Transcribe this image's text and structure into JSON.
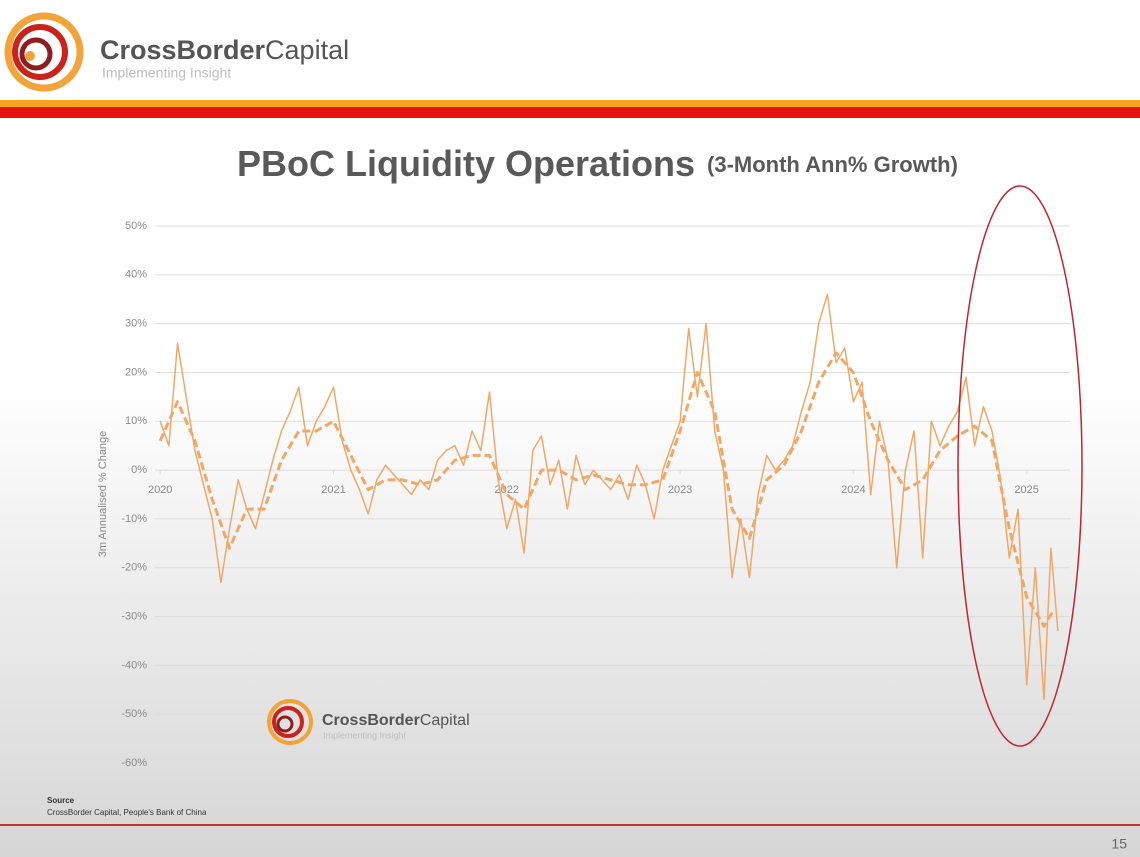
{
  "header": {
    "name_bold": "CrossBorder",
    "name_regular": "Capital",
    "tagline": "Implementing Insight"
  },
  "chart_data": {
    "type": "line",
    "title": "PBoC Liquidity Operations",
    "subtitle": "(3-Month Ann% Growth)",
    "y_label": "3m Annualised % Change",
    "xlim": [
      2019.97,
      2025.25
    ],
    "xticks": [
      2020,
      2021,
      2022,
      2023,
      2024,
      2025
    ],
    "ylim": [
      -60,
      50
    ],
    "yticks": [
      {
        "value": -60,
        "label": "-60%"
      },
      {
        "value": -50,
        "label": "-50%"
      },
      {
        "value": -40,
        "label": "-40%"
      },
      {
        "value": -30,
        "label": "-30%"
      },
      {
        "value": -20,
        "label": "-20%"
      },
      {
        "value": -10,
        "label": "-10%"
      },
      {
        "value": 0,
        "label": "0%"
      },
      {
        "value": 10,
        "label": "10%"
      },
      {
        "value": 20,
        "label": "20%"
      },
      {
        "value": 30,
        "label": "30%"
      },
      {
        "value": 40,
        "label": "40%"
      },
      {
        "value": 50,
        "label": "50%"
      }
    ],
    "grid": true,
    "series": [
      {
        "color": "#f0a868",
        "line_style": "solid",
        "x": [
          2020.0,
          2020.05,
          2020.1,
          2020.15,
          2020.2,
          2020.25,
          2020.3,
          2020.35,
          2020.4,
          2020.45,
          2020.5,
          2020.55,
          2020.6,
          2020.65,
          2020.7,
          2020.75,
          2020.8,
          2020.85,
          2020.9,
          2020.95,
          2021.0,
          2021.05,
          2021.1,
          2021.15,
          2021.2,
          2021.25,
          2021.3,
          2021.35,
          2021.4,
          2021.45,
          2021.5,
          2021.55,
          2021.6,
          2021.65,
          2021.7,
          2021.75,
          2021.8,
          2021.85,
          2021.9,
          2021.95,
          2022.0,
          2022.05,
          2022.1,
          2022.15,
          2022.2,
          2022.25,
          2022.3,
          2022.35,
          2022.4,
          2022.45,
          2022.5,
          2022.55,
          2022.6,
          2022.65,
          2022.7,
          2022.75,
          2022.8,
          2022.85,
          2022.9,
          2022.95,
          2023.0,
          2023.05,
          2023.1,
          2023.15,
          2023.2,
          2023.25,
          2023.3,
          2023.35,
          2023.4,
          2023.45,
          2023.5,
          2023.55,
          2023.6,
          2023.65,
          2023.7,
          2023.75,
          2023.8,
          2023.85,
          2023.9,
          2023.95,
          2024.0,
          2024.05,
          2024.1,
          2024.15,
          2024.2,
          2024.25,
          2024.3,
          2024.35,
          2024.4,
          2024.45,
          2024.5,
          2024.55,
          2024.6,
          2024.65,
          2024.7,
          2024.75,
          2024.8,
          2024.85,
          2024.9,
          2024.95,
          2025.0,
          2025.05,
          2025.1,
          2025.14,
          2025.18
        ],
        "values": [
          10,
          5,
          26,
          15,
          4,
          -3,
          -10,
          -23,
          -12,
          -2,
          -8,
          -12,
          -5,
          2,
          8,
          12,
          17,
          5,
          10,
          13,
          17,
          6,
          0,
          -4,
          -9,
          -2,
          1,
          -1,
          -3,
          -5,
          -2,
          -4,
          2,
          4,
          5,
          1,
          8,
          4,
          16,
          -2,
          -12,
          -6,
          -17,
          4,
          7,
          -3,
          2,
          -8,
          3,
          -3,
          0,
          -2,
          -4,
          -1,
          -6,
          1,
          -3,
          -10,
          0,
          5,
          10,
          29,
          15,
          30,
          8,
          0,
          -22,
          -10,
          -22,
          -5,
          3,
          0,
          2,
          5,
          12,
          18,
          30,
          36,
          22,
          25,
          14,
          18,
          -5,
          10,
          2,
          -20,
          0,
          8,
          -18,
          10,
          5,
          9,
          12,
          19,
          5,
          13,
          8,
          -2,
          -18,
          -8,
          -44,
          -20,
          -47,
          -16,
          -33
        ]
      },
      {
        "color": "#f0a868",
        "line_style": "dashed",
        "x": [
          2020.0,
          2020.1,
          2020.2,
          2020.3,
          2020.4,
          2020.5,
          2020.6,
          2020.7,
          2020.8,
          2020.9,
          2021.0,
          2021.1,
          2021.2,
          2021.3,
          2021.4,
          2021.5,
          2021.6,
          2021.7,
          2021.8,
          2021.9,
          2022.0,
          2022.1,
          2022.2,
          2022.3,
          2022.4,
          2022.5,
          2022.6,
          2022.7,
          2022.8,
          2022.9,
          2023.0,
          2023.1,
          2023.2,
          2023.3,
          2023.4,
          2023.5,
          2023.6,
          2023.7,
          2023.8,
          2023.9,
          2024.0,
          2024.1,
          2024.2,
          2024.3,
          2024.4,
          2024.5,
          2024.6,
          2024.7,
          2024.8,
          2024.9,
          2025.0,
          2025.1,
          2025.15
        ],
        "values": [
          6,
          14,
          6,
          -6,
          -16,
          -8,
          -8,
          2,
          8,
          8,
          10,
          3,
          -4,
          -2,
          -2,
          -3,
          -2,
          2,
          3,
          3,
          -5,
          -8,
          0,
          0,
          -2,
          -1,
          -2,
          -3,
          -3,
          -2,
          8,
          20,
          12,
          -8,
          -14,
          -2,
          1,
          8,
          18,
          24,
          20,
          10,
          2,
          -4,
          -2,
          4,
          7,
          9,
          6,
          -12,
          -26,
          -32,
          -29
        ]
      }
    ]
  },
  "watermark": {
    "name_bold": "CrossBorder",
    "name_regular": "Capital",
    "tagline": "Implementing Insight"
  },
  "source": {
    "heading": "Source",
    "text": "CrossBorder Capital, People's Bank of China"
  },
  "page_number": "15"
}
